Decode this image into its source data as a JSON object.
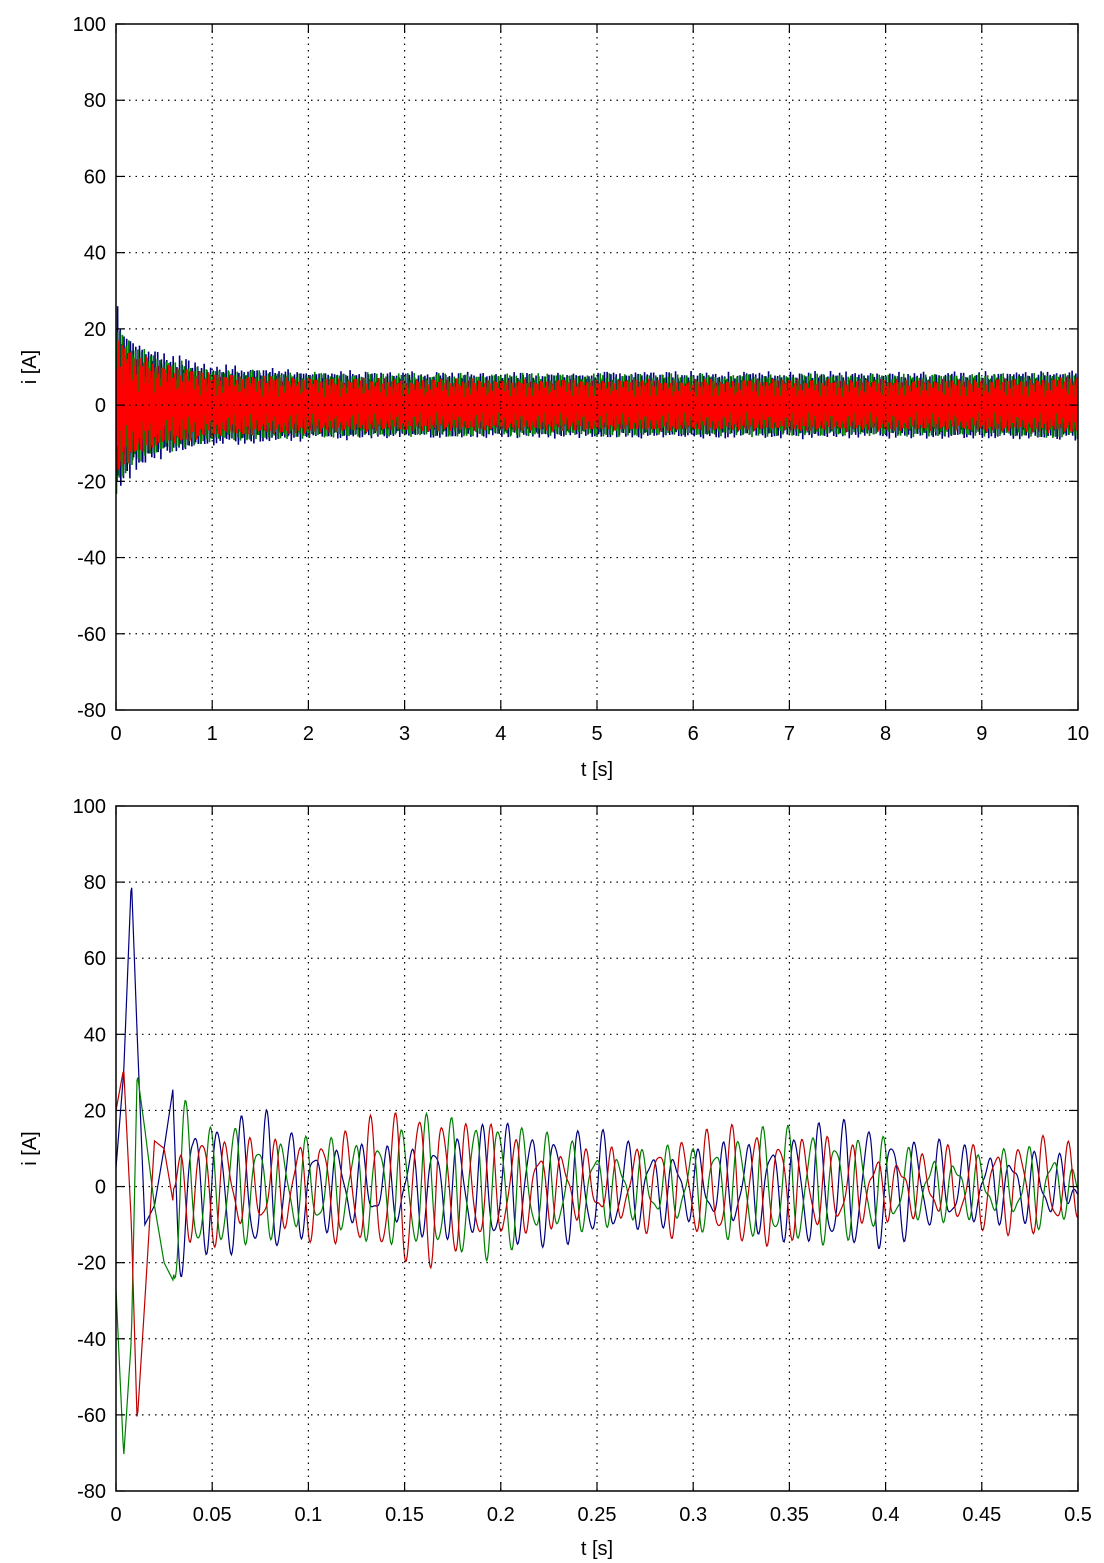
{
  "chart_data": [
    {
      "type": "line",
      "title": "",
      "xlabel": "t [s]",
      "ylabel": "i [A]",
      "xlim": [
        0,
        10
      ],
      "ylim": [
        -80,
        100
      ],
      "xticks": [
        0,
        1,
        2,
        3,
        4,
        5,
        6,
        7,
        8,
        9,
        10
      ],
      "xtick_labels": [
        "0",
        "1",
        "2",
        "3",
        "4",
        "5",
        "6",
        "7",
        "8",
        "9",
        "10"
      ],
      "yticks": [
        -80,
        -60,
        -40,
        -20,
        0,
        20,
        40,
        60,
        80,
        100
      ],
      "ytick_labels": [
        "-80",
        "-60",
        "-40",
        "-20",
        "0",
        "20",
        "40",
        "60",
        "80",
        "100"
      ],
      "grid": true,
      "series": [
        {
          "color": "#00007f",
          "envelope": {
            "x": [
              0,
              0.05,
              0.2,
              0.5,
              1,
              2,
              3,
              4,
              5,
              6,
              7,
              8,
              9,
              10
            ],
            "max": [
              28,
              22,
              18,
              14,
              11,
              9.5,
              9,
              9,
              9,
              9,
              9,
              9,
              9,
              9.5
            ],
            "min": [
              -25,
              -22,
              -18,
              -14,
              -11,
              -9.5,
              -9,
              -9,
              -9,
              -9,
              -9,
              -9,
              -9,
              -9.5
            ]
          }
        },
        {
          "color": "#007f00",
          "envelope": {
            "x": [
              0,
              0.05,
              0.2,
              0.5,
              1,
              2,
              3,
              4,
              5,
              6,
              7,
              8,
              9,
              10
            ],
            "max": [
              24,
              20,
              16,
              13,
              10,
              9,
              8.5,
              8.5,
              8.5,
              8.5,
              8.5,
              8.5,
              8.5,
              9
            ],
            "min": [
              -24,
              -20,
              -16,
              -13,
              -10,
              -9,
              -8.5,
              -8.5,
              -8.5,
              -8.5,
              -8.5,
              -8.5,
              -8.5,
              -9
            ]
          }
        },
        {
          "color": "#ff0000",
          "envelope": {
            "x": [
              0,
              0.05,
              0.2,
              0.5,
              1,
              2,
              3,
              4,
              5,
              6,
              7,
              8,
              9,
              10
            ],
            "max": [
              22,
              18,
              14,
              11,
              8.5,
              7.5,
              7,
              7,
              7,
              7,
              7,
              7,
              7,
              7.5
            ],
            "min": [
              -22,
              -18,
              -14,
              -11,
              -8.5,
              -7.5,
              -7,
              -7,
              -7,
              -7,
              -7,
              -7,
              -7,
              -7.5
            ]
          }
        }
      ]
    },
    {
      "type": "line",
      "title": "",
      "xlabel": "t [s]",
      "ylabel": "i [A]",
      "xlim": [
        0,
        0.5
      ],
      "ylim": [
        -80,
        100
      ],
      "xticks": [
        0,
        0.05,
        0.1,
        0.15,
        0.2,
        0.25,
        0.3,
        0.35,
        0.4,
        0.45,
        0.5
      ],
      "xtick_labels": [
        "0",
        "0.05",
        "0.1",
        "0.15",
        "0.2",
        "0.25",
        "0.3",
        "0.35",
        "0.4",
        "0.45",
        "0.5"
      ],
      "yticks": [
        -80,
        -60,
        -40,
        -20,
        0,
        20,
        40,
        60,
        80,
        100
      ],
      "ytick_labels": [
        "-80",
        "-60",
        "-40",
        "-20",
        "0",
        "20",
        "40",
        "60",
        "80",
        "100"
      ],
      "grid": true,
      "series": [
        {
          "color": "#00007f",
          "x": [
            0,
            0.004,
            0.008,
            0.011,
            0.015,
            0.02,
            0.025,
            0.03,
            0.04,
            0.05,
            0.06,
            0.07,
            0.08,
            0.09,
            0.1,
            0.12,
            0.14,
            0.16,
            0.18,
            0.2,
            0.22,
            0.24,
            0.26,
            0.28,
            0.3,
            0.32,
            0.34,
            0.36,
            0.38,
            0.4,
            0.42,
            0.44,
            0.46,
            0.48,
            0.5
          ],
          "y": [
            5,
            30,
            81,
            40,
            -10,
            -5,
            10,
            27,
            -15,
            15,
            -18,
            18,
            -22,
            20,
            -16,
            18,
            -15,
            16,
            -14,
            15,
            -13,
            15,
            -16,
            15,
            -15,
            16,
            -14,
            15,
            -15,
            14,
            -13,
            14,
            -14,
            15,
            -5
          ]
        },
        {
          "color": "#007f00",
          "x": [
            0,
            0.004,
            0.008,
            0.011,
            0.015,
            0.02,
            0.025,
            0.03,
            0.04,
            0.05,
            0.06,
            0.07,
            0.08,
            0.09,
            0.1,
            0.12,
            0.14,
            0.16,
            0.18,
            0.2,
            0.22,
            0.24,
            0.26,
            0.28,
            0.3,
            0.32,
            0.34,
            0.36,
            0.38,
            0.4,
            0.42,
            0.44,
            0.46,
            0.48,
            0.5
          ],
          "y": [
            -27,
            -71,
            -40,
            30,
            15,
            -5,
            -20,
            -25,
            20,
            -15,
            22,
            -18,
            20,
            -20,
            -21,
            19,
            -17,
            18,
            -16,
            17,
            -14,
            16,
            -14,
            15,
            -14,
            14,
            -14,
            13,
            -13,
            14,
            -12,
            13,
            -12,
            13,
            3
          ]
        },
        {
          "color": "#bf0000",
          "x": [
            0,
            0.004,
            0.008,
            0.011,
            0.015,
            0.02,
            0.025,
            0.03,
            0.04,
            0.05,
            0.06,
            0.07,
            0.08,
            0.09,
            0.1,
            0.12,
            0.14,
            0.16,
            0.18,
            0.2,
            0.22,
            0.24,
            0.26,
            0.28,
            0.3,
            0.32,
            0.34,
            0.36,
            0.38,
            0.4,
            0.42,
            0.44,
            0.46,
            0.48,
            0.5
          ],
          "y": [
            20,
            31,
            -10,
            -62,
            -30,
            12,
            10,
            -5,
            -20,
            -24,
            18,
            -20,
            20,
            -18,
            19,
            -17,
            18,
            -19,
            16,
            -17,
            15,
            -15,
            14,
            -15,
            13,
            -14,
            13,
            -13,
            14,
            -12,
            13,
            -15,
            12,
            -12,
            8
          ]
        }
      ]
    }
  ]
}
